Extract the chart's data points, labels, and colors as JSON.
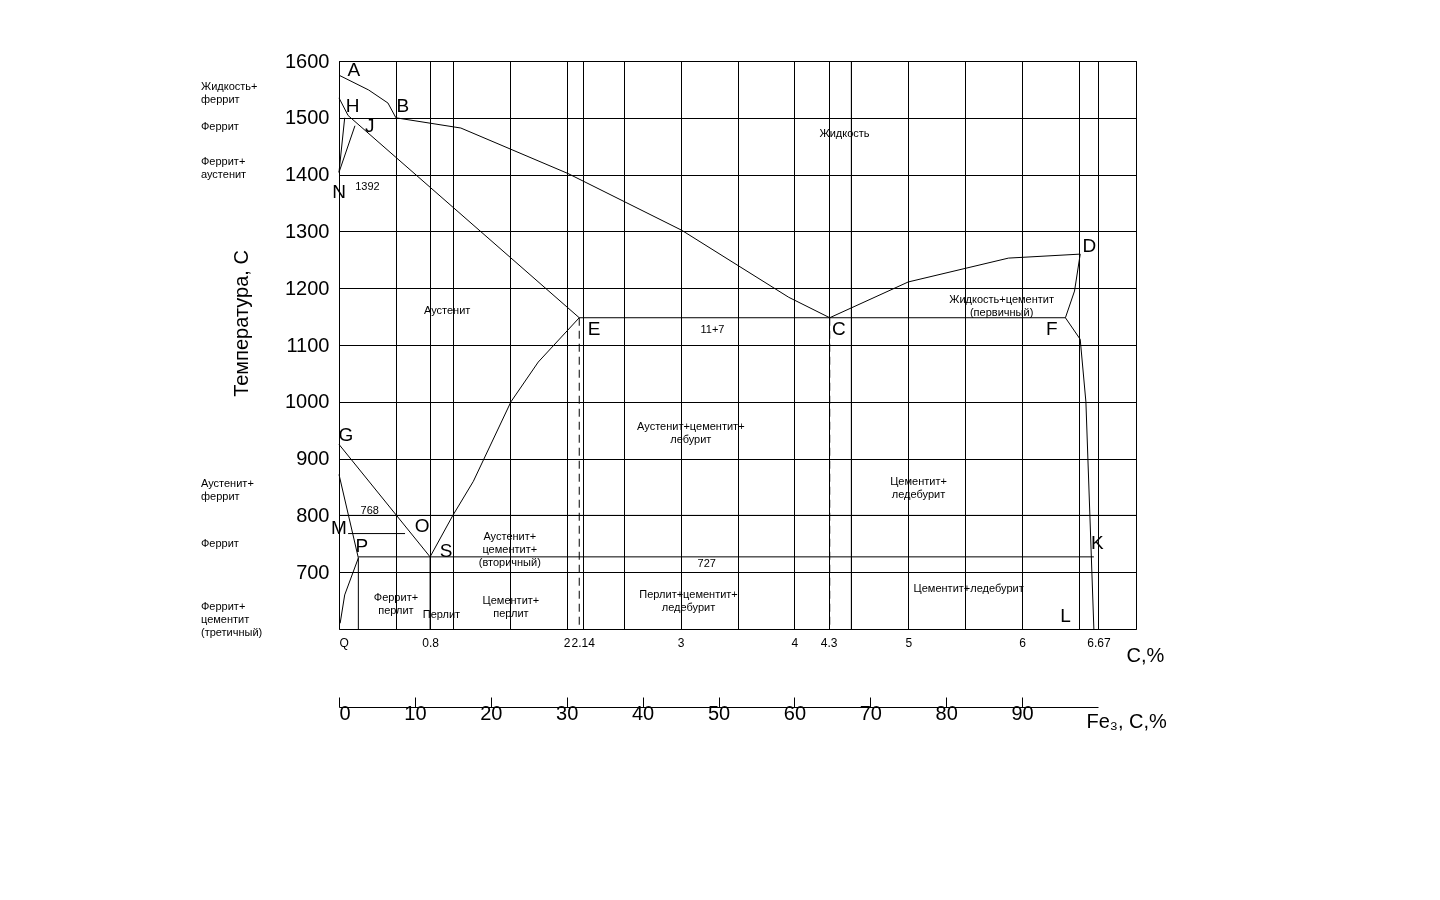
{
  "chart_data": {
    "type": "line",
    "xlabel": "C,%",
    "ylabel": "Температура, С",
    "x2label": "Fe₃, C,%",
    "grid": true,
    "xlim": [
      0,
      7
    ],
    "ylim": [
      600,
      1600
    ],
    "xticks": [
      {
        "value": 0,
        "label": "Q"
      },
      {
        "value": 0.5,
        "label": null
      },
      0.8,
      {
        "value": 1,
        "label": null
      },
      {
        "value": 1.5,
        "label": null
      },
      2,
      2.14,
      {
        "value": 2.5,
        "label": null
      },
      3,
      {
        "value": 3.5,
        "label": null
      },
      4,
      4.3,
      {
        "value": 4.5,
        "label": null
      },
      5,
      {
        "value": 5.5,
        "label": null
      },
      6,
      {
        "value": 6.5,
        "label": null
      },
      6.67,
      {
        "value": 7,
        "label": null
      }
    ],
    "yticks": [
      700,
      800,
      900,
      1000,
      1100,
      1200,
      1300,
      1400,
      1500,
      1600
    ],
    "x2lim": [
      0,
      100
    ],
    "x2ticks": [
      0,
      10,
      20,
      30,
      40,
      50,
      60,
      70,
      80,
      90
    ],
    "series": [
      {
        "color": "#000000",
        "x": [
          0,
          0.26,
          0.43,
          0.5,
          1.07,
          2.01,
          3.01,
          3.95,
          4.31
        ],
        "values": [
          1575,
          1549,
          1526,
          1500,
          1482,
          1402,
          1302,
          1184,
          1148
        ]
      },
      {
        "color": "#000000",
        "x": [
          0,
          0.08,
          2.11
        ],
        "values": [
          1535,
          1504,
          1148
        ]
      },
      {
        "color": "#000000",
        "x": [
          0,
          0.05
        ],
        "values": [
          1404,
          1500
        ]
      },
      {
        "color": "#000000",
        "x": [
          0,
          0.14
        ],
        "values": [
          1404,
          1486
        ]
      },
      {
        "color": "#000000",
        "x": [
          4.31,
          5.0,
          5.88,
          6.51
        ],
        "values": [
          1148,
          1211,
          1253,
          1260
        ]
      },
      {
        "color": "#000000",
        "x": [
          6.51,
          6.46,
          6.38
        ],
        "values": [
          1260,
          1195,
          1148
        ]
      },
      {
        "color": "#000000",
        "x": [
          6.38,
          6.51,
          6.56,
          6.63
        ],
        "values": [
          1148,
          1110,
          1000,
          600
        ]
      },
      {
        "color": "#000000",
        "x": [
          2.11,
          6.38
        ],
        "values": [
          1148,
          1148
        ]
      },
      {
        "color": "#000000",
        "x": [
          2.11,
          1.75,
          1.51,
          1.18,
          1.0,
          0.8
        ],
        "values": [
          1148,
          1070,
          1000,
          860,
          800,
          727
        ]
      },
      {
        "color": "#000000",
        "x": [
          0,
          0.8
        ],
        "values": [
          925,
          727
        ]
      },
      {
        "color": "#000000",
        "x": [
          0,
          0.17,
          0.05,
          0.01
        ],
        "values": [
          872,
          725,
          660,
          610
        ]
      },
      {
        "color": "#000000",
        "x": [
          0.17,
          0.17
        ],
        "values": [
          725,
          600
        ]
      },
      {
        "color": "#000000",
        "x": [
          0.08,
          0.58
        ],
        "values": [
          768,
          768
        ]
      },
      {
        "color": "#000000",
        "x": [
          0.17,
          6.63
        ],
        "values": [
          727,
          727
        ]
      },
      {
        "color": "#000000",
        "x": [
          0.8,
          0.8
        ],
        "values": [
          727,
          600
        ]
      },
      {
        "color": "#000000",
        "x": [
          0,
          7
        ],
        "values": [
          800,
          800
        ]
      },
      {
        "color": "#000000",
        "x": [
          4.5,
          4.5
        ],
        "values": [
          1600,
          600
        ]
      },
      {
        "color": "#000000",
        "x": [
          2.11,
          2.11
        ],
        "values": [
          1148,
          600
        ],
        "line_style": "dashed"
      },
      {
        "color": "#000000",
        "x": [
          4.31,
          4.31
        ],
        "values": [
          1148,
          600
        ],
        "line_style": "dashed"
      }
    ],
    "annotations": [
      "A",
      "H",
      "J",
      "B",
      "N",
      "1392",
      "E",
      "C",
      "D",
      "F",
      "G",
      "M",
      "768",
      "O",
      "P",
      "S",
      "K",
      "L",
      "727",
      "Жидкость",
      "Аустенит",
      "11+7",
      "Жидкость+цементит\n(первичный)",
      "Аустенит+цементит+\nлебурит",
      "Цементит+\nледебурит",
      "Аустенит+\nцементит+\n(вторичный)",
      "Перлит+цементит+\nледебурит",
      "Цементит+ледебурит",
      "Цементит+\nперлит",
      "Феррит+\nперлит",
      "Перлит",
      "Жидкость+\nферрит",
      "Феррит",
      "Феррит+\nаустенит",
      "Аустенит+\nферрит",
      "Феррит",
      "Феррит+\nцементит\n(третичный)"
    ]
  }
}
